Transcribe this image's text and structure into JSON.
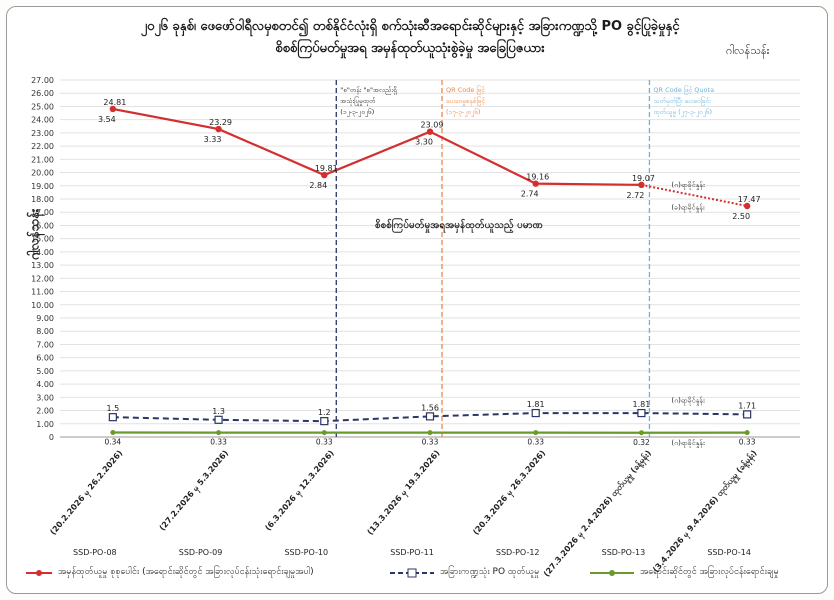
{
  "title": {
    "line1": "၂၀၂၆ ခုနှစ်၊ ဖေဖော်ဝါရီလမှစတင်၍ တစ်နိုင်ငံလုံးရှိ စက်သုံးဆီအရောင်းဆိုင်များနှင့် အခြားကဏ္ဍသို့ PO ခွင့်ပြုခဲ့မှုနှင့်",
    "line2": "စိစစ်ကြပ်မတ်မှုအရ အမှန်ထုတ်ယူသုံးစွဲခဲ့မှု အခြေပြဇယား",
    "unit": "ဂါလန်သန်း"
  },
  "chart_data": {
    "type": "line",
    "ylabel": "ဂါလန်သန်း",
    "ylim": [
      0,
      27
    ],
    "yticks": [
      "0",
      "1.00",
      "2.00",
      "3.00",
      "4.00",
      "5.00",
      "6.00",
      "7.00",
      "8.00",
      "9.00",
      "10.00",
      "11.00",
      "12.00",
      "13.00",
      "14.00",
      "15.00",
      "16.00",
      "17.00",
      "18.00",
      "19.00",
      "20.00",
      "21.00",
      "22.00",
      "23.00",
      "24.00",
      "25.00",
      "26.00",
      "27.00"
    ],
    "grid": true,
    "categories": [
      "(20.2.2026 မှ 26.2.2026)",
      "(27.2.2026 မှ 5.3.2026)",
      "(6.3.2026 မှ 12.3.2026)",
      "(13.3.2026 မှ 19.3.2026)",
      "(20.3.2026 မှ 26.3.2026)",
      "(27.3.2026 မှ 2.4.2026) ထုတ်ယူမှု (ခန့်မှန်း)",
      "(3.4.2026 မှ 9.4.2026) ထုတ်ယူမှု (ခန့်မှန်း)"
    ],
    "po_labels": [
      "SSD-PO-08",
      "SSD-PO-09",
      "SSD-PO-10",
      "SSD-PO-11",
      "SSD-PO-12",
      "SSD-PO-13",
      "SSD-PO-14"
    ],
    "series": [
      {
        "name": "အမှန်ထုတ်ယူမှု စုစုပေါင်း (အရောင်းဆိုင်တွင် အခြားလုပ်ငန်းသုံးရောင်းချမှုအပါ)",
        "color": "#d32f2f",
        "values": [
          24.81,
          23.29,
          19.81,
          23.09,
          19.16,
          19.07,
          17.47
        ],
        "sub_labels": [
          "3.54",
          "3.33",
          "2.84",
          "3.30",
          "2.74",
          "2.72",
          "2.50"
        ]
      },
      {
        "name": "အခြားကဏ္ဍသုံး PO ထုတ်ယူမှု",
        "color": "#2c3566",
        "values": [
          1.5,
          1.3,
          1.2,
          1.56,
          1.81,
          1.81,
          1.71
        ]
      },
      {
        "name": "အရောင်းဆိုင်တွင် အခြားလုပ်ငန်းရောင်းချမှု",
        "color": "#6a9a2a",
        "values": [
          0.34,
          0.33,
          0.33,
          0.33,
          0.33,
          0.32,
          0.33
        ]
      }
    ],
    "value_labels_series2": [
      "1.5",
      "1.3",
      "1.2",
      "1.56",
      "1.81",
      "1.81",
      "1.71"
    ],
    "value_labels_series1": [
      "24.81",
      "23.29",
      "19.81",
      "23.09",
      "19.16",
      "19.07",
      "17.47"
    ],
    "value_labels_series3": [
      "0.34",
      "0.33",
      "0.33",
      "0.33",
      "0.33",
      "0.32",
      "0.33"
    ],
    "annotations": {
      "middle": "စိစစ်ကြပ်မတ်မှုအရအမှန်ထုတ်ယူသည့် ပမာဏ",
      "est1": "(ခ)ရာခိုင်နှုန်း",
      "est2": "(ဂ)ရာခိုင်နှုန်း",
      "est3": "(ဂ)ရာခိုင်နှုန်း",
      "est4": "(ဂ)ရာခိုင်နှုန်း",
      "vline1": [
        "\"စ\"တန်း \"စ\"အလည်းရှိ",
        "အသုံးပြုမှုထုတ်",
        "(၁၂-၃-၂၀၂၆)"
      ],
      "vline2": [
        "QR Code ဖြင့်",
        "ပေးဝေမှုစနစ်ဖြင့်",
        "(၁၇-၃-၂၀၂၆)"
      ],
      "vline3": [
        "QR Code ဖြင့် Quota",
        "သတ်မှတ်ပြီး ပေးဝေခြင်း",
        "ထုတ်ယူမှု (၂၇-၃-၂၀၂၆)"
      ]
    }
  },
  "legend": {
    "s1": "အမှန်ထုတ်ယူမှု စုစုပေါင်း (အရောင်းဆိုင်တွင် အခြားလုပ်ငန်းသုံးရောင်းချမှုအပါ)",
    "s2": "အခြားကဏ္ဍသုံး PO ထုတ်ယူမှု",
    "s3": "အရောင်းဆိုင်တွင် အခြားလုပ်ငန်းရောင်းချမှု"
  }
}
